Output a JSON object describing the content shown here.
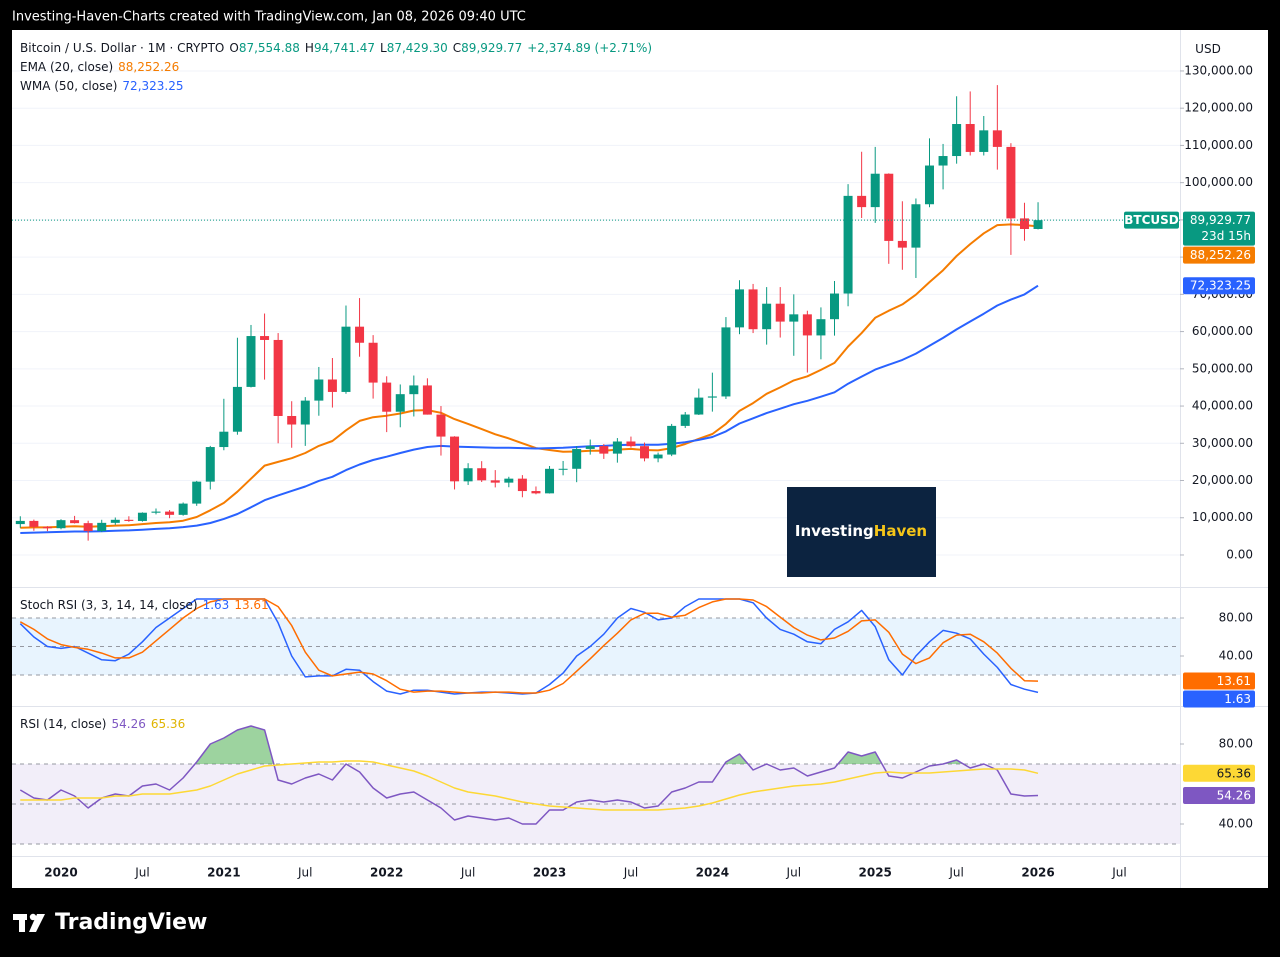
{
  "header": "Investing-Haven-Charts created with TradingView.com, Jan 08, 2026 09:40 UTC",
  "currency": "USD",
  "brand": "TradingView",
  "watermark": {
    "first": "Investing",
    "second": "Haven"
  },
  "chart_data": [
    {
      "type": "candlestick",
      "title": "Bitcoin / U.S. Dollar · 1M · CRYPTO",
      "legend_ohlc": [
        {
          "key": "O",
          "value": "87,554.88"
        },
        {
          "key": "H",
          "value": "94,741.47"
        },
        {
          "key": "L",
          "value": "87,429.30"
        },
        {
          "key": "C",
          "value": "89,929.77"
        }
      ],
      "change": "+2,374.89 (+2.71%)",
      "ticker": "BTCUSD",
      "countdown": "23d 15h",
      "last_label": "89,929.77",
      "up_color": "#089981",
      "down_color": "#f23645",
      "categories": [
        null,
        null,
        null,
        "2020",
        null,
        null,
        null,
        null,
        null,
        "Jul",
        null,
        null,
        null,
        null,
        null,
        "2021",
        null,
        null,
        null,
        null,
        null,
        "Jul",
        null,
        null,
        null,
        null,
        null,
        "2022",
        null,
        null,
        null,
        null,
        null,
        "Jul",
        null,
        null,
        null,
        null,
        null,
        "2023",
        null,
        null,
        null,
        null,
        null,
        "Jul",
        null,
        null,
        null,
        null,
        null,
        "2024",
        null,
        null,
        null,
        null,
        null,
        "Jul",
        null,
        null,
        null,
        null,
        null,
        "2025",
        null,
        null,
        null,
        null,
        null,
        "Jul",
        null,
        null,
        null,
        null,
        null,
        "2026",
        null,
        null,
        null,
        null,
        null,
        "Jul"
      ],
      "open": [
        8300,
        9150,
        7550,
        7190,
        9350,
        8550,
        6420,
        8630,
        9450,
        9140,
        11350,
        11650,
        10780,
        13800,
        19700,
        28990,
        33110,
        45140,
        58800,
        57750,
        37330,
        35040,
        41460,
        47130,
        43790,
        61320,
        57000,
        46300,
        38480,
        43190,
        45540,
        37700,
        31800,
        19780,
        23300,
        20050,
        19430,
        20500,
        17170,
        16550,
        23140,
        23150,
        28480,
        29250,
        27220,
        30480,
        29230,
        25940,
        26970,
        34670,
        37720,
        42270,
        42580,
        61130,
        71330,
        60640,
        67490,
        62680,
        64630,
        58970,
        63330,
        70220,
        96450,
        93430,
        102400,
        84350,
        82550,
        94200,
        104600,
        107150,
        115750,
        108250,
        114050,
        109600,
        90400,
        87554.88,
        null,
        null,
        null,
        null,
        null,
        null
      ],
      "high": [
        10400,
        9500,
        7750,
        9600,
        10500,
        9200,
        9450,
        10070,
        10400,
        11450,
        12470,
        12070,
        14100,
        19900,
        29300,
        41950,
        58350,
        61780,
        64850,
        59600,
        41300,
        42400,
        50500,
        52900,
        67000,
        69000,
        59050,
        47990,
        45800,
        48200,
        47450,
        40000,
        31900,
        24650,
        25200,
        22800,
        21000,
        21450,
        18400,
        23900,
        25250,
        29200,
        31000,
        29800,
        31400,
        31800,
        30200,
        27500,
        35200,
        38400,
        44700,
        48970,
        63900,
        73800,
        72800,
        71950,
        71950,
        70000,
        65600,
        66500,
        73600,
        99600,
        108300,
        109600,
        102500,
        95000,
        95750,
        111900,
        110400,
        123200,
        124500,
        117900,
        126200,
        110600,
        94600,
        94741.47,
        null,
        null,
        null,
        null,
        null,
        null
      ],
      "low": [
        7300,
        6500,
        6400,
        6900,
        8450,
        3850,
        6150,
        8100,
        8900,
        8960,
        10900,
        9880,
        10550,
        13200,
        17600,
        28130,
        32300,
        45000,
        47100,
        30000,
        28800,
        29300,
        37400,
        39600,
        43300,
        53250,
        42000,
        33000,
        34300,
        37200,
        37700,
        26700,
        17600,
        18800,
        19600,
        18150,
        18200,
        15500,
        16300,
        16500,
        21400,
        19550,
        26950,
        25800,
        24800,
        28850,
        25150,
        24900,
        26550,
        34100,
        37600,
        38500,
        41900,
        59300,
        59600,
        56500,
        58400,
        53500,
        49000,
        52550,
        58900,
        66800,
        90500,
        89200,
        78200,
        76600,
        74400,
        93400,
        98200,
        105100,
        107300,
        107300,
        103500,
        80600,
        84400,
        87429.3,
        null,
        null,
        null,
        null,
        null,
        null
      ],
      "close": [
        9150,
        7550,
        7190,
        9350,
        8550,
        6420,
        8630,
        9450,
        9140,
        11350,
        11650,
        10780,
        13800,
        19700,
        28990,
        33110,
        45140,
        58800,
        57750,
        37330,
        35040,
        41460,
        47130,
        43790,
        61320,
        57000,
        46300,
        38480,
        43190,
        45540,
        37700,
        31800,
        19780,
        23300,
        20050,
        19430,
        20500,
        17170,
        16550,
        23140,
        23150,
        28480,
        29250,
        27220,
        30480,
        29230,
        25940,
        26970,
        34670,
        37720,
        42270,
        42580,
        61130,
        71330,
        60640,
        67490,
        62680,
        64630,
        58970,
        63330,
        70220,
        96450,
        93430,
        102400,
        84350,
        82550,
        94200,
        104600,
        107150,
        115750,
        108250,
        114050,
        109600,
        90400,
        87550,
        89929.77,
        null,
        null,
        null,
        null,
        null,
        null
      ],
      "series": [
        {
          "name": "EMA (20, close)",
          "color": "#f57c00",
          "last_label": "88,252.26",
          "values": [
            7300,
            7400,
            7400,
            7600,
            7700,
            7600,
            7700,
            7900,
            8000,
            8300,
            8600,
            8800,
            9200,
            10200,
            12000,
            14000,
            17000,
            20500,
            24000,
            25000,
            26000,
            27400,
            29300,
            30600,
            33500,
            36000,
            37000,
            37400,
            38000,
            38800,
            38900,
            38200,
            36500,
            35200,
            33800,
            32400,
            31300,
            30000,
            28700,
            28200,
            27700,
            27800,
            28000,
            28000,
            28300,
            28500,
            28200,
            28100,
            28700,
            29800,
            31200,
            32500,
            35200,
            38700,
            40800,
            43300,
            45000,
            46900,
            48000,
            49700,
            51600,
            56000,
            59600,
            63700,
            65600,
            67300,
            69900,
            73300,
            76500,
            80300,
            83500,
            86400,
            88600,
            88800,
            88600,
            88252.26,
            null,
            null,
            null,
            null,
            null,
            null
          ]
        },
        {
          "name": "WMA (50, close)",
          "color": "#2962ff",
          "last_label": "72,323.25",
          "values": [
            5900,
            6000,
            6100,
            6200,
            6300,
            6300,
            6400,
            6500,
            6600,
            6800,
            7000,
            7200,
            7500,
            7900,
            8600,
            9700,
            11000,
            12800,
            14700,
            16000,
            17200,
            18400,
            19900,
            21000,
            22800,
            24300,
            25500,
            26400,
            27400,
            28300,
            29000,
            29300,
            29100,
            29000,
            28900,
            28800,
            28800,
            28700,
            28600,
            28700,
            28800,
            29000,
            29200,
            29300,
            29500,
            29600,
            29600,
            29600,
            29900,
            30300,
            30900,
            31700,
            33200,
            35300,
            36700,
            38100,
            39300,
            40500,
            41400,
            42500,
            43700,
            46000,
            47900,
            49800,
            51100,
            52400,
            54100,
            56200,
            58300,
            60600,
            62700,
            64800,
            67000,
            68600,
            70000,
            72323.25,
            null,
            null,
            null,
            null,
            null,
            null
          ]
        }
      ],
      "ylim": [
        -8600,
        141000
      ],
      "yticks": [
        {
          "value": 0,
          "label": "0.00"
        },
        {
          "value": 10000,
          "label": "10,000.00"
        },
        {
          "value": 20000,
          "label": "20,000.00"
        },
        {
          "value": 30000,
          "label": "30,000.00"
        },
        {
          "value": 40000,
          "label": "40,000.00"
        },
        {
          "value": 50000,
          "label": "50,000.00"
        },
        {
          "value": 60000,
          "label": "60,000.00"
        },
        {
          "value": 70000,
          "label": "70,000.00"
        },
        {
          "value": 80000,
          "label": "80,000.00"
        },
        {
          "value": 90000,
          "label": "90,000.00"
        },
        {
          "value": 100000,
          "label": "100,000.00"
        },
        {
          "value": 110000,
          "label": "110,000.00"
        },
        {
          "value": 120000,
          "label": "120,000.00"
        },
        {
          "value": 130000,
          "label": "130,000.00"
        }
      ],
      "grid": true
    },
    {
      "type": "line",
      "title": "Stoch RSI (3, 3, 14, 14, close)",
      "series": [
        {
          "color": "#2962ff",
          "last_label": "1.63",
          "values": [
            74,
            60,
            50,
            48,
            50,
            43,
            36,
            35,
            42,
            55,
            70,
            80,
            90,
            100,
            100,
            100,
            100,
            100,
            100,
            75,
            40,
            18,
            19,
            19,
            26,
            25,
            13,
            3,
            0,
            4,
            4,
            2,
            0,
            1,
            2,
            2,
            1,
            0,
            1,
            10,
            22,
            40,
            50,
            63,
            80,
            90,
            86,
            78,
            80,
            92,
            100,
            100,
            100,
            100,
            96,
            80,
            68,
            63,
            55,
            53,
            68,
            76,
            88,
            71,
            36,
            20,
            40,
            55,
            67,
            64,
            58,
            42,
            28,
            10,
            5,
            1.63,
            null,
            null,
            null,
            null,
            null,
            null
          ]
        },
        {
          "color": "#ff6d00",
          "last_label": "13.61",
          "values": [
            76,
            68,
            58,
            52,
            49,
            47,
            43,
            38,
            38,
            44,
            56,
            68,
            80,
            90,
            97,
            100,
            100,
            100,
            100,
            92,
            72,
            44,
            25,
            19,
            21,
            23,
            21,
            14,
            5,
            2,
            3,
            3,
            2,
            1,
            1,
            2,
            2,
            1,
            1,
            4,
            11,
            24,
            37,
            51,
            64,
            78,
            85,
            85,
            81,
            83,
            91,
            97,
            100,
            100,
            99,
            92,
            81,
            70,
            62,
            57,
            59,
            66,
            77,
            78,
            65,
            42,
            32,
            38,
            54,
            62,
            63,
            55,
            43,
            27,
            14,
            13.61,
            null,
            null,
            null,
            null,
            null,
            null
          ]
        }
      ],
      "ylim": [
        -11.6,
        111.6
      ],
      "yticks": [
        {
          "value": 80,
          "label": "80.00"
        },
        {
          "value": 40,
          "label": "40.00"
        }
      ],
      "levels": [
        80,
        50,
        20
      ],
      "band_color": "rgba(33,150,243,0.1)"
    },
    {
      "type": "line",
      "title": "RSI (14, close)",
      "series": [
        {
          "color": "#7e57c2",
          "last_label": "54.26",
          "values": [
            57,
            53,
            52,
            57,
            54,
            48,
            53,
            55,
            54,
            59,
            60,
            57,
            63,
            71,
            80,
            83,
            87,
            89,
            87,
            62,
            60,
            63,
            65,
            62,
            70,
            66,
            58,
            53,
            55,
            56,
            52,
            48,
            42,
            44,
            43,
            42,
            43,
            40,
            40,
            47,
            47,
            51,
            52,
            51,
            52,
            51,
            48,
            49,
            56,
            58,
            61,
            61,
            71,
            75,
            67,
            70,
            67,
            68,
            64,
            66,
            68,
            76,
            74,
            76,
            64,
            63,
            66,
            69,
            70,
            72,
            68,
            70,
            67,
            55,
            54,
            54.26,
            null,
            null,
            null,
            null,
            null,
            null
          ]
        },
        {
          "color": "#fdd835",
          "last_label": "65.36",
          "values": [
            52,
            52,
            52,
            52,
            53,
            53,
            53,
            54,
            54,
            55,
            55,
            55,
            56,
            57,
            59,
            62,
            65,
            67,
            69,
            69.5,
            70,
            70.5,
            71,
            71,
            71.5,
            71.5,
            71,
            69.5,
            68,
            66.5,
            64,
            61,
            58,
            56,
            55,
            54,
            52.5,
            51,
            50,
            49,
            48.5,
            48,
            47.5,
            47,
            47,
            47,
            47,
            47,
            47.5,
            48,
            49,
            50.5,
            52.5,
            54.5,
            56,
            57,
            58,
            59,
            59.5,
            60,
            61,
            62.5,
            64,
            65.5,
            66,
            65.5,
            65.5,
            65.5,
            66,
            66.5,
            67,
            67.5,
            67.5,
            67.5,
            67,
            65.36,
            null,
            null,
            null,
            null,
            null,
            null
          ]
        }
      ],
      "ylim": [
        24,
        98.5
      ],
      "yticks": [
        {
          "value": 80,
          "label": "80.00"
        },
        {
          "value": 40,
          "label": "40.00"
        }
      ],
      "levels": [
        70,
        50,
        30
      ],
      "band_color": "rgba(126,87,194,0.1)",
      "overbought_color": "rgba(76,175,80,0.55)"
    }
  ]
}
